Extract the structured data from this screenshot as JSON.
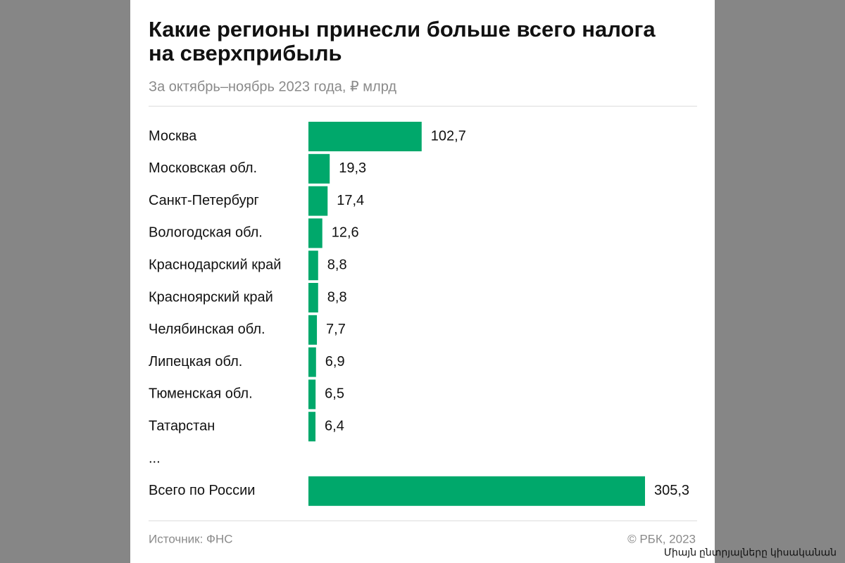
{
  "chart_data": {
    "type": "bar",
    "orientation": "horizontal",
    "title": "Какие регионы принесли больше всего налога на сверхприбыль",
    "subtitle": "За октябрь–ноябрь 2023 года, ₽ млрд",
    "categories": [
      "Москва",
      "Московская обл.",
      "Санкт-Петербург",
      "Вологодская обл.",
      "Краснодарский край",
      "Красноярский край",
      "Челябинская обл.",
      "Липецкая обл.",
      "Тюменская обл.",
      "Татарстан",
      "...",
      "Всего по России"
    ],
    "values": [
      102.7,
      19.3,
      17.4,
      12.6,
      8.8,
      8.8,
      7.7,
      6.9,
      6.5,
      6.4,
      null,
      305.3
    ],
    "value_labels": [
      "102,7",
      "19,3",
      "17,4",
      "12,6",
      "8,8",
      "8,8",
      "7,7",
      "6,9",
      "6,5",
      "6,4",
      null,
      "305,3"
    ],
    "color": "#00a86b",
    "source": "Источник: ФНС",
    "copyright": "© РБК, 2023"
  },
  "watermark": "Միայն ընտրյալները կիսականան"
}
